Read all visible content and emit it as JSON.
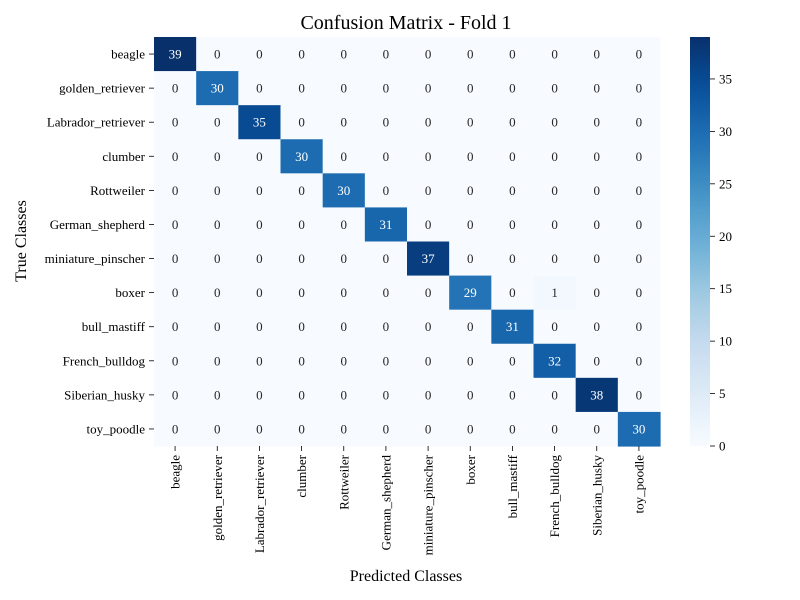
{
  "chart_data": {
    "type": "heatmap",
    "title": "Confusion Matrix - Fold 1",
    "xlabel": "Predicted Classes",
    "ylabel": "True Classes",
    "x_categories": [
      "beagle",
      "golden_retriever",
      "Labrador_retriever",
      "clumber",
      "Rottweiler",
      "German_shepherd",
      "miniature_pinscher",
      "boxer",
      "bull_mastiff",
      "French_bulldog",
      "Siberian_husky",
      "toy_poodle"
    ],
    "y_categories": [
      "beagle",
      "golden_retriever",
      "Labrador_retriever",
      "clumber",
      "Rottweiler",
      "German_shepherd",
      "miniature_pinscher",
      "boxer",
      "bull_mastiff",
      "French_bulldog",
      "Siberian_husky",
      "toy_poodle"
    ],
    "values": [
      [
        39,
        0,
        0,
        0,
        0,
        0,
        0,
        0,
        0,
        0,
        0,
        0
      ],
      [
        0,
        30,
        0,
        0,
        0,
        0,
        0,
        0,
        0,
        0,
        0,
        0
      ],
      [
        0,
        0,
        35,
        0,
        0,
        0,
        0,
        0,
        0,
        0,
        0,
        0
      ],
      [
        0,
        0,
        0,
        30,
        0,
        0,
        0,
        0,
        0,
        0,
        0,
        0
      ],
      [
        0,
        0,
        0,
        0,
        30,
        0,
        0,
        0,
        0,
        0,
        0,
        0
      ],
      [
        0,
        0,
        0,
        0,
        0,
        31,
        0,
        0,
        0,
        0,
        0,
        0
      ],
      [
        0,
        0,
        0,
        0,
        0,
        0,
        37,
        0,
        0,
        0,
        0,
        0
      ],
      [
        0,
        0,
        0,
        0,
        0,
        0,
        0,
        29,
        0,
        1,
        0,
        0
      ],
      [
        0,
        0,
        0,
        0,
        0,
        0,
        0,
        0,
        31,
        0,
        0,
        0
      ],
      [
        0,
        0,
        0,
        0,
        0,
        0,
        0,
        0,
        0,
        32,
        0,
        0
      ],
      [
        0,
        0,
        0,
        0,
        0,
        0,
        0,
        0,
        0,
        0,
        38,
        0
      ],
      [
        0,
        0,
        0,
        0,
        0,
        0,
        0,
        0,
        0,
        0,
        0,
        30
      ]
    ],
    "colormap": "Blues",
    "colorbar": {
      "range": [
        0,
        39
      ],
      "ticks": [
        0,
        5,
        10,
        15,
        20,
        25,
        30,
        35
      ]
    },
    "grid": false,
    "legend": "colorbar-right"
  }
}
